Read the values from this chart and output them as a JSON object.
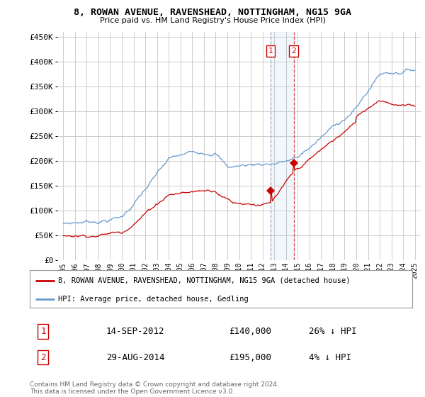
{
  "title": "8, ROWAN AVENUE, RAVENSHEAD, NOTTINGHAM, NG15 9GA",
  "subtitle": "Price paid vs. HM Land Registry's House Price Index (HPI)",
  "background_color": "#ffffff",
  "plot_bg_color": "#ffffff",
  "grid_color": "#cccccc",
  "legend_label_red": "8, ROWAN AVENUE, RAVENSHEAD, NOTTINGHAM, NG15 9GA (detached house)",
  "legend_label_blue": "HPI: Average price, detached house, Gedling",
  "transaction1_date_x": 2012.71,
  "transaction1_price": 140000,
  "transaction2_date_x": 2014.66,
  "transaction2_price": 195000,
  "footnote": "Contains HM Land Registry data © Crown copyright and database right 2024.\nThis data is licensed under the Open Government Licence v3.0.",
  "table_row1": [
    "1",
    "14-SEP-2012",
    "£140,000",
    "26% ↓ HPI"
  ],
  "table_row2": [
    "2",
    "29-AUG-2014",
    "£195,000",
    "4% ↓ HPI"
  ],
  "ylim": [
    0,
    460000
  ],
  "yticks": [
    0,
    50000,
    100000,
    150000,
    200000,
    250000,
    300000,
    350000,
    400000,
    450000
  ],
  "xmin": 1994.5,
  "xmax": 2025.5,
  "red_color": "#cc0000",
  "blue_color": "#6699cc",
  "line_color_t1_vert": "#aaaacc",
  "line_color_t2_vert": "#cc4444"
}
